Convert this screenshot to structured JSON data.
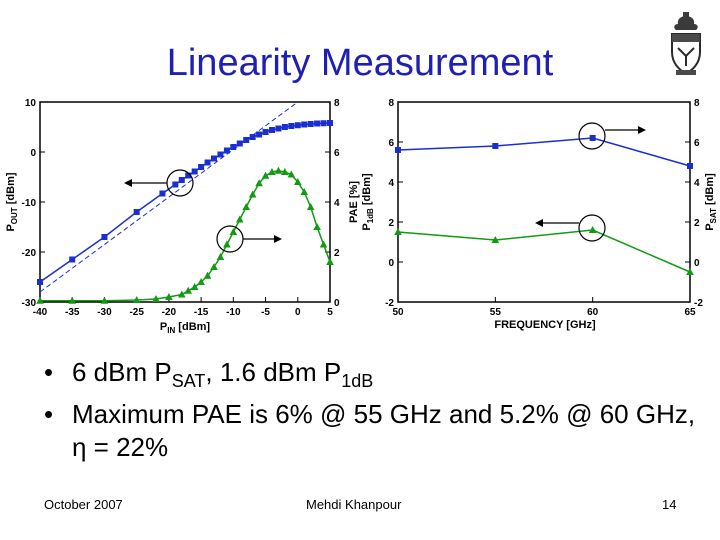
{
  "slide": {
    "title": "Linearity Measurement",
    "bullets": [
      {
        "parts": [
          {
            "t": "6 dBm P"
          },
          {
            "t": "SAT",
            "sub": true
          },
          {
            "t": ", 1.6 dBm P"
          },
          {
            "t": "1dB",
            "sub": true
          }
        ]
      },
      {
        "parts": [
          {
            "t": "Maximum PAE is 6% @ 55 GHz and 5.2% @ 60 GHz, η = 22%"
          }
        ]
      }
    ],
    "footer": {
      "date": "October 2007",
      "author": "Mehdi Khanpour",
      "page": "14"
    }
  },
  "colors": {
    "title": "#1f1fb5",
    "blue_series": "#1a2fd0",
    "green_series": "#139a13"
  },
  "chart_data": [
    {
      "type": "line",
      "xlabel": "PIN [dBm]",
      "ylabel_left": "POUT [dBm]",
      "ylabel_right": "PAE [%]",
      "xlim": [
        -40,
        5
      ],
      "ylim_left": [
        -30,
        10
      ],
      "ylim_right": [
        0,
        8
      ],
      "x_ticks": [
        "-40",
        "-35",
        "-30",
        "-25",
        "-20",
        "-15",
        "-10",
        "-5",
        "0",
        "5"
      ],
      "y_ticks_left": [
        "-30",
        "-20",
        "-10",
        "0",
        "10"
      ],
      "y_ticks_right": [
        "0",
        "2",
        "4",
        "6",
        "8"
      ],
      "series": [
        {
          "axis": "left",
          "marker": "square",
          "x": [
            -40,
            -35,
            -30,
            -25,
            -21,
            -19,
            -18,
            -17,
            -16,
            -15,
            -14,
            -13,
            -12,
            -11,
            -10,
            -9,
            -8,
            -7,
            -6,
            -5,
            -4,
            -3,
            -2,
            -1,
            0,
            1,
            2,
            3,
            4,
            5
          ],
          "values": [
            -26,
            -21.5,
            -17,
            -12,
            -8.3,
            -6.5,
            -5.6,
            -4.7,
            -3.9,
            -3.0,
            -2.1,
            -1.3,
            -0.5,
            0.3,
            1.0,
            1.7,
            2.4,
            3.0,
            3.5,
            4.0,
            4.4,
            4.7,
            5.0,
            5.2,
            5.35,
            5.5,
            5.6,
            5.7,
            5.75,
            5.8
          ]
        },
        {
          "axis": "right",
          "marker": "triangle",
          "x": [
            -40,
            -35,
            -30,
            -25,
            -22,
            -20,
            -18,
            -17,
            -16,
            -15,
            -14,
            -13,
            -12,
            -11,
            -10,
            -9,
            -8,
            -7,
            -6,
            -5,
            -4,
            -3,
            -2,
            -1,
            0,
            1,
            2,
            3,
            4,
            5
          ],
          "values": [
            0.05,
            0.05,
            0.05,
            0.08,
            0.12,
            0.2,
            0.3,
            0.45,
            0.6,
            0.8,
            1.05,
            1.4,
            1.8,
            2.3,
            2.8,
            3.3,
            3.8,
            4.3,
            4.75,
            5.05,
            5.2,
            5.25,
            5.2,
            5.1,
            4.8,
            4.4,
            3.8,
            3.0,
            2.3,
            1.6
          ]
        },
        {
          "axis": "left",
          "style": "dashed",
          "x": [
            -40,
            0
          ],
          "values": [
            -28,
            10
          ]
        }
      ]
    },
    {
      "type": "line",
      "xlabel": "FREQUENCY [GHz]",
      "ylabel_left": "P1dB [dBm]",
      "ylabel_right": "PSAT [dBm]",
      "xlim": [
        50,
        65
      ],
      "ylim": [
        -2,
        8
      ],
      "x_ticks": [
        "50",
        "55",
        "60",
        "65"
      ],
      "y_ticks_left": [
        "-2",
        "0",
        "2",
        "4",
        "6",
        "8"
      ],
      "y_ticks_right": [
        "-2",
        "0",
        "2",
        "4",
        "6",
        "8"
      ],
      "series": [
        {
          "marker": "square",
          "x": [
            50,
            55,
            60,
            65
          ],
          "values": [
            5.6,
            5.8,
            6.2,
            4.8
          ]
        },
        {
          "marker": "triangle",
          "x": [
            50,
            55,
            60,
            65
          ],
          "values": [
            1.5,
            1.1,
            1.6,
            -0.5
          ]
        }
      ]
    }
  ]
}
